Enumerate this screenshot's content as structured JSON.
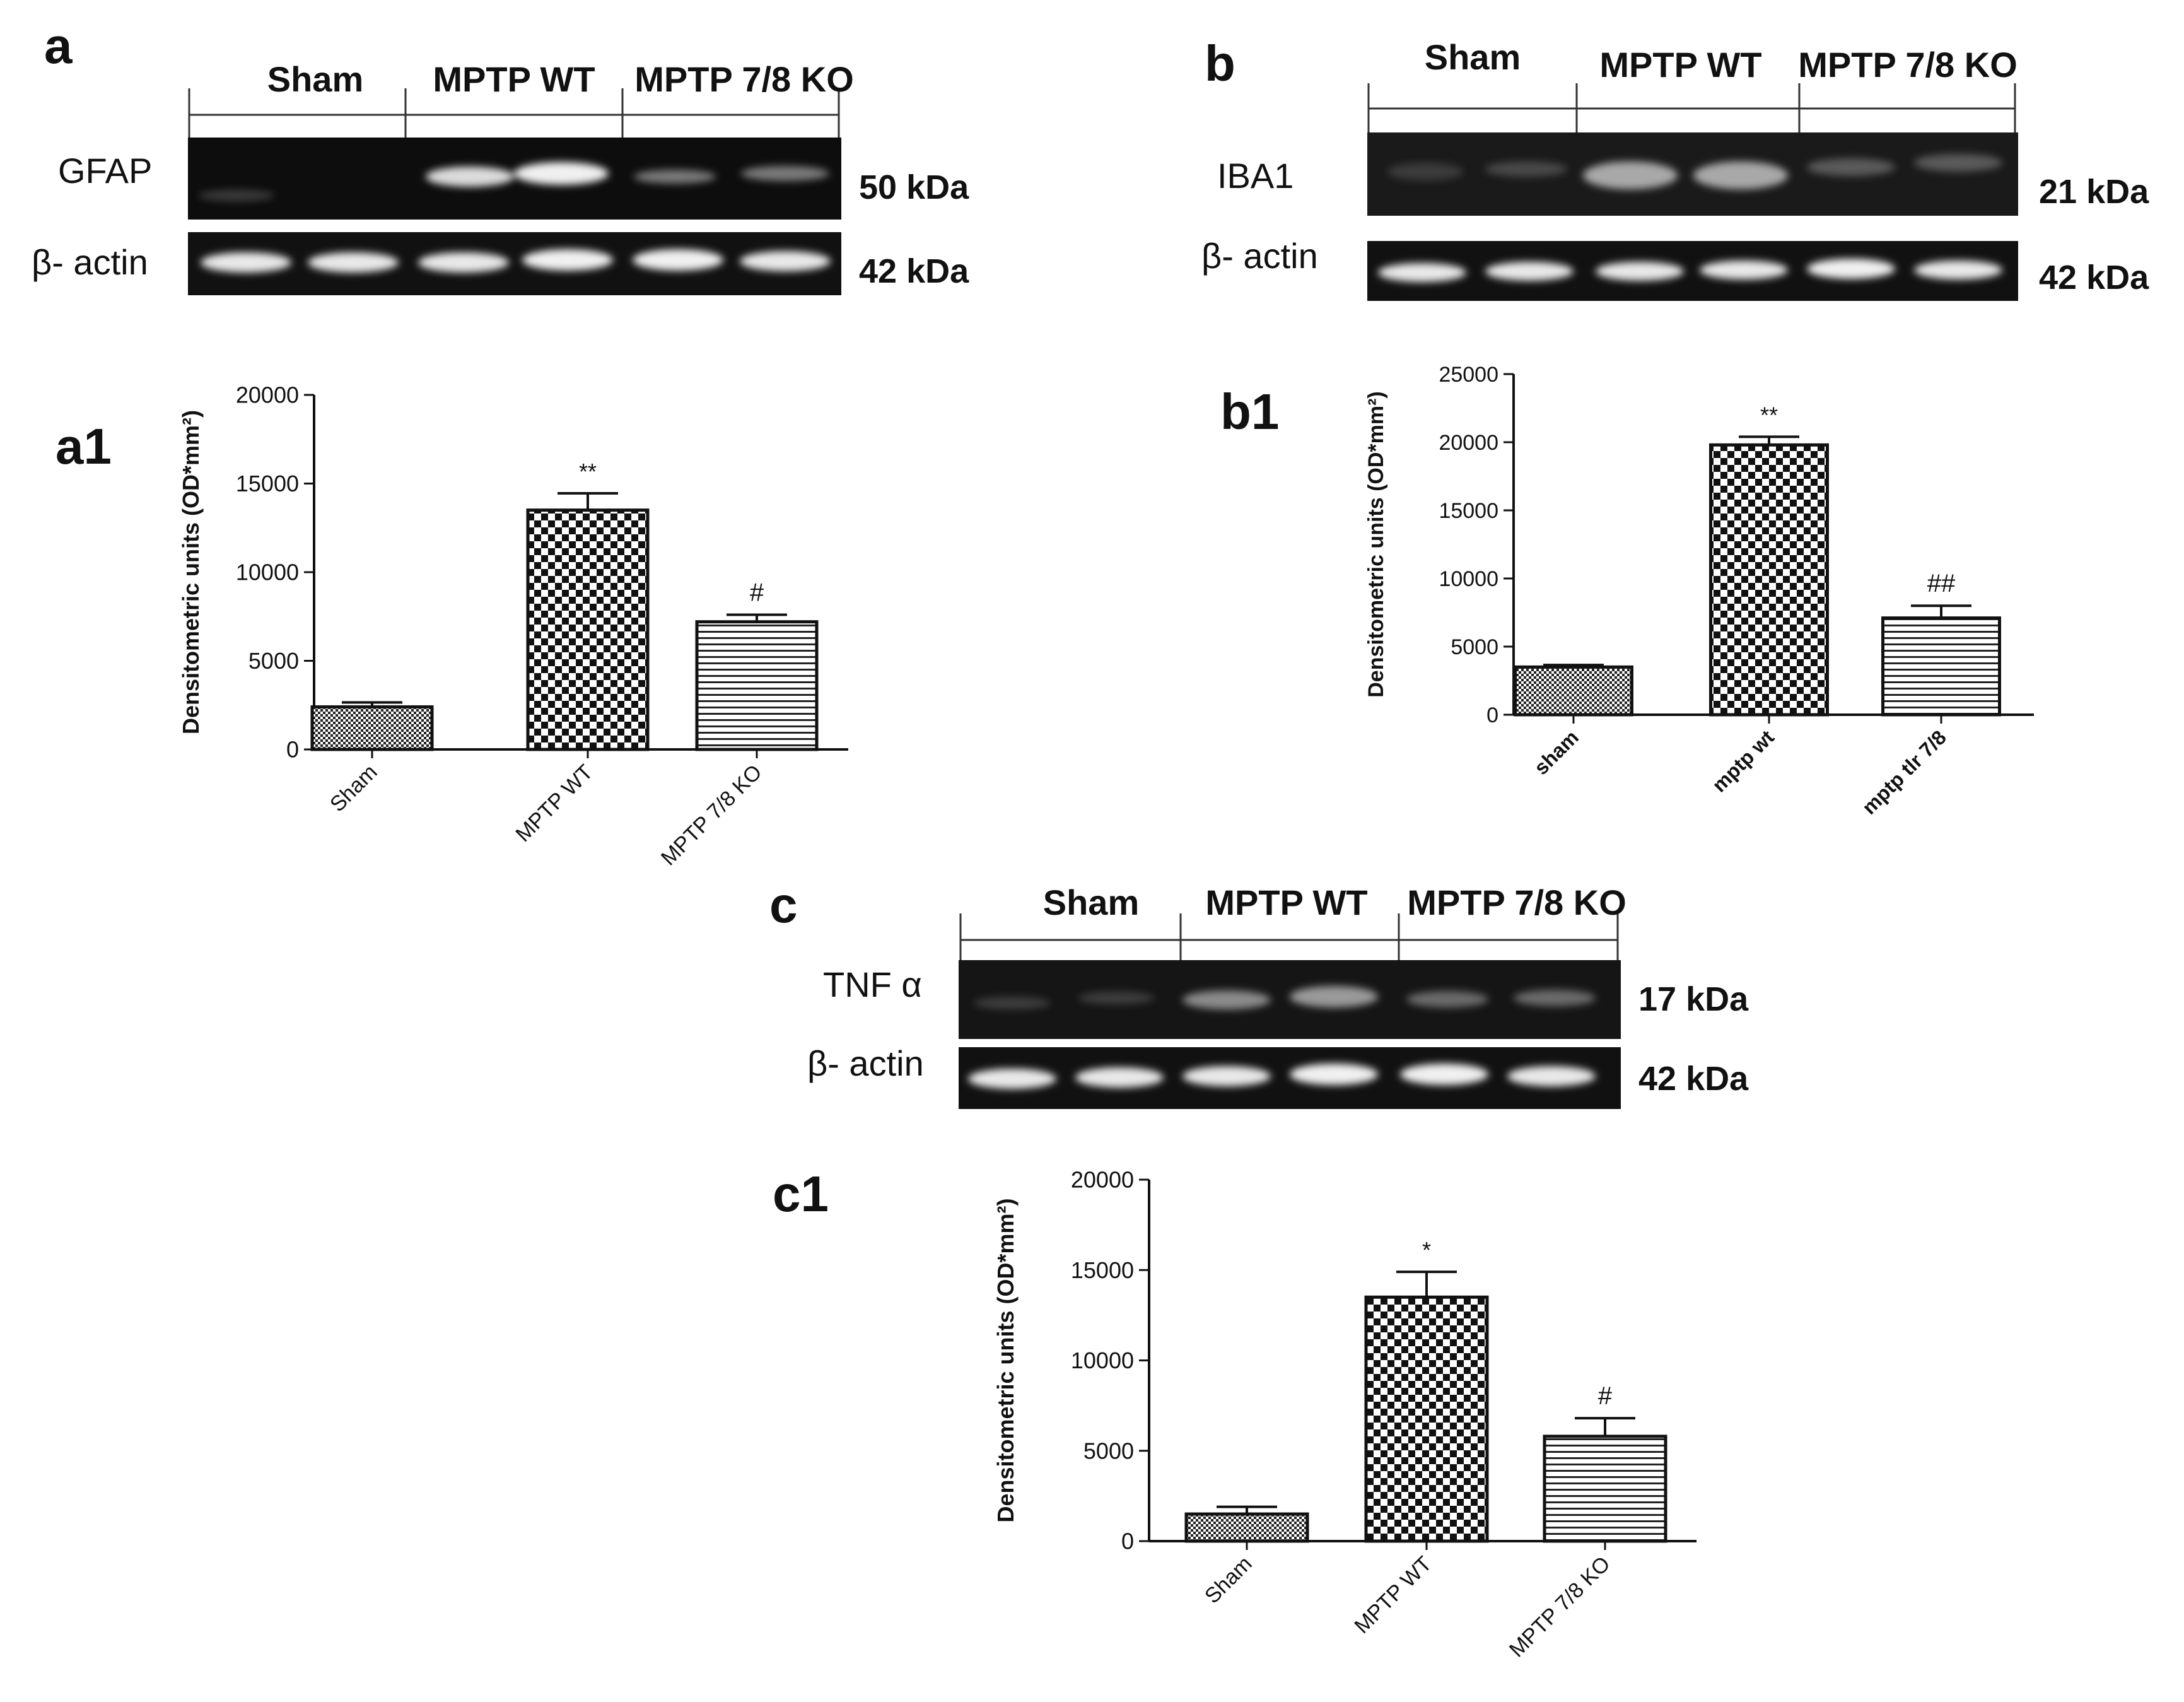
{
  "panels": {
    "a": {
      "label": "a",
      "groups": [
        "Sham",
        "MPTP WT",
        "MPTP 7/8 KO"
      ],
      "blot_label": "GFAP",
      "blot_kda": "50 kDa",
      "actin_label": "β- actin",
      "actin_kda": "42 kDa"
    },
    "b": {
      "label": "b",
      "groups": [
        "Sham",
        "MPTP WT",
        "MPTP 7/8 KO"
      ],
      "blot_label": "IBA1",
      "blot_kda": "21 kDa",
      "actin_label": "β- actin",
      "actin_kda": "42 kDa"
    },
    "c": {
      "label": "c",
      "groups": [
        "Sham",
        "MPTP WT",
        "MPTP 7/8 KO"
      ],
      "blot_label": "TNF α",
      "blot_kda": "17 kDa",
      "actin_label": "β- actin",
      "actin_kda": "42 kDa"
    }
  },
  "chart_labels": {
    "a1": "a1",
    "b1": "b1",
    "c1": "c1"
  },
  "chart_data": [
    {
      "id": "a1",
      "type": "bar",
      "ylabel": "Densitometric units (OD*mm²)",
      "ylim": [
        0,
        20000
      ],
      "yticks": [
        0,
        5000,
        10000,
        15000,
        20000
      ],
      "categories": [
        "Sham",
        "MPTP WT",
        "MPTP 7/8 KO"
      ],
      "values": [
        2400,
        13500,
        7200
      ],
      "errors": [
        250,
        950,
        400
      ],
      "annotations": [
        "",
        "**",
        "#"
      ],
      "patterns": [
        "dense-check",
        "checker",
        "hlines"
      ]
    },
    {
      "id": "b1",
      "type": "bar",
      "ylabel": "Densitometric units (OD*mm²)",
      "ylim": [
        0,
        25000
      ],
      "yticks": [
        0,
        5000,
        10000,
        15000,
        20000,
        25000
      ],
      "categories": [
        "sham",
        "mptp wt",
        "mptp tlr 7/8"
      ],
      "values": [
        3500,
        19800,
        7100
      ],
      "errors": [
        150,
        600,
        900
      ],
      "annotations": [
        "",
        "**",
        "##"
      ],
      "patterns": [
        "dense-check",
        "checker",
        "hlines"
      ]
    },
    {
      "id": "c1",
      "type": "bar",
      "ylabel": "Densitometric units (OD*mm²)",
      "ylim": [
        0,
        20000
      ],
      "yticks": [
        0,
        5000,
        10000,
        15000,
        20000
      ],
      "categories": [
        "Sham",
        "MPTP WT",
        "MPTP 7/8 KO"
      ],
      "values": [
        1500,
        13500,
        5800
      ],
      "errors": [
        400,
        1400,
        1000
      ],
      "annotations": [
        "",
        "*",
        "#"
      ],
      "patterns": [
        "dense-check",
        "checker",
        "hlines"
      ]
    }
  ]
}
